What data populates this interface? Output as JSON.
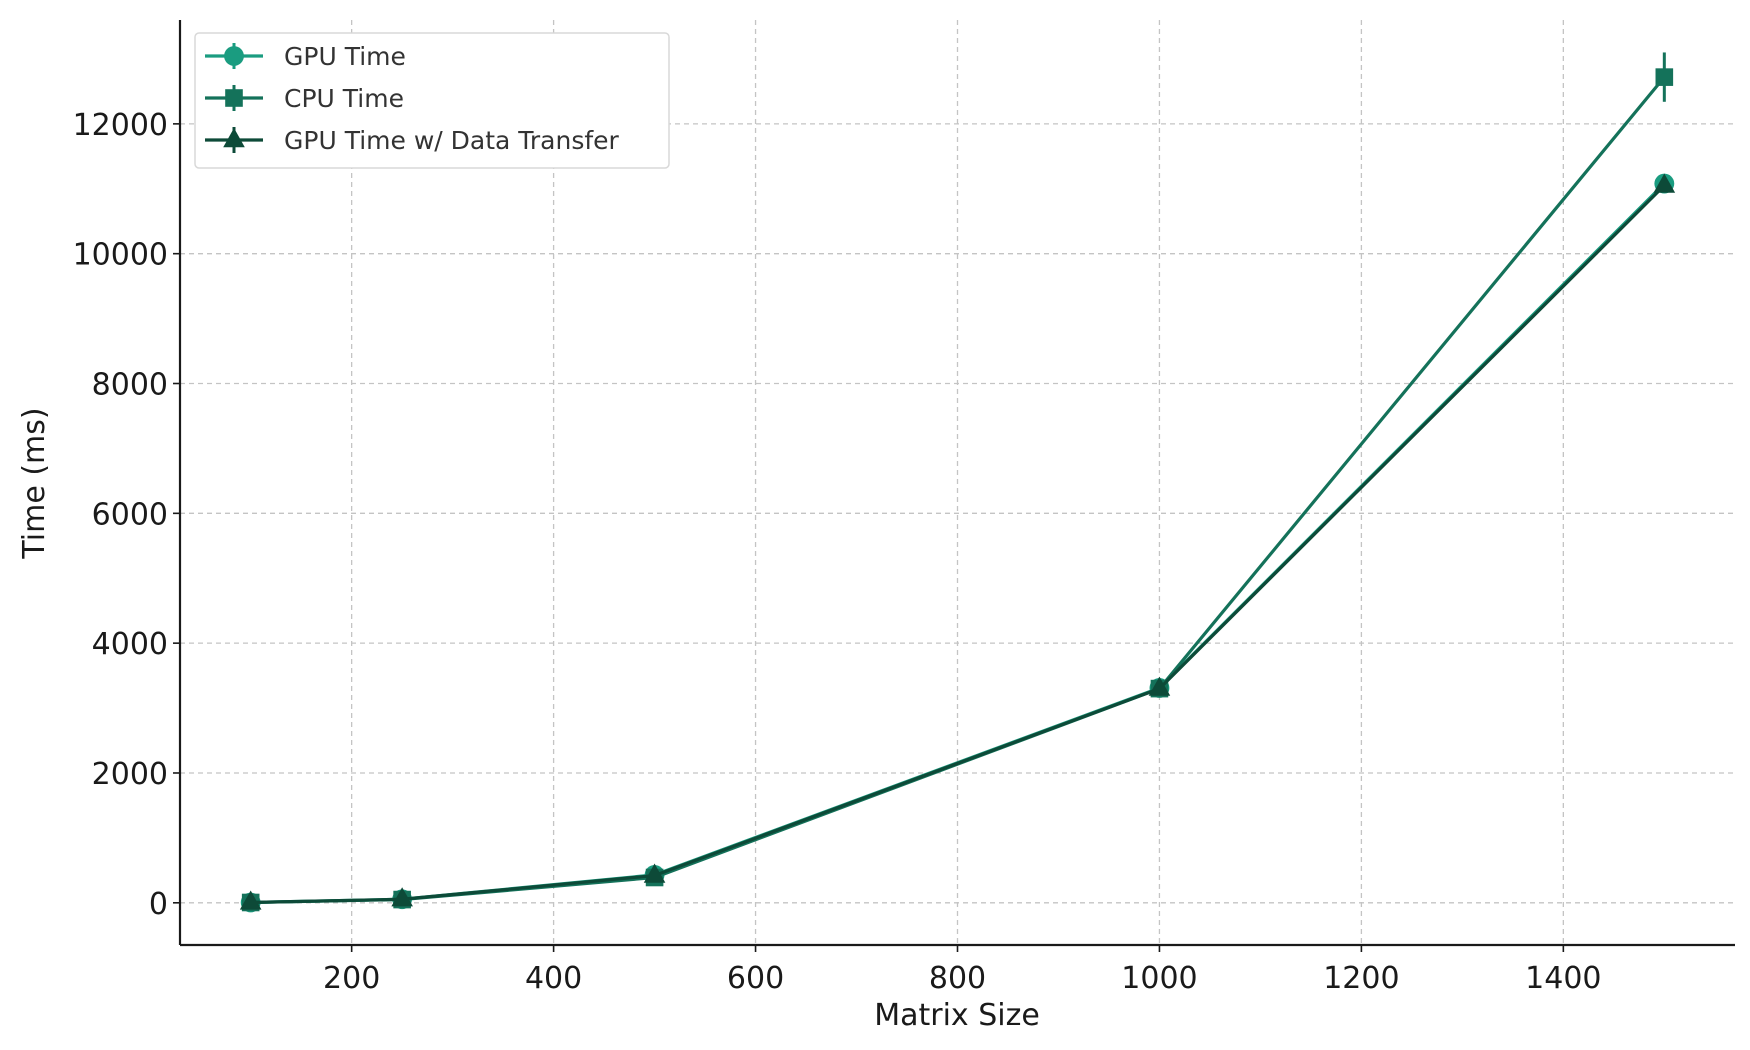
{
  "chart_data": {
    "type": "line",
    "title": "",
    "xlabel": "Matrix Size",
    "ylabel": "Time (ms)",
    "xlim": [
      30,
      1570
    ],
    "ylim": [
      -650,
      13600
    ],
    "x_ticks": [
      200,
      400,
      600,
      800,
      1000,
      1200,
      1400
    ],
    "y_ticks": [
      0,
      2000,
      4000,
      6000,
      8000,
      10000,
      12000
    ],
    "grid": true,
    "legend_position": "top-left",
    "x": [
      100,
      250,
      500,
      1000,
      1500
    ],
    "series": [
      {
        "name": "GPU Time",
        "marker": "circle",
        "color": "#1a9c80",
        "values": [
          5,
          55,
          430,
          3310,
          11080
        ],
        "errors": [
          0,
          0,
          0,
          0,
          0
        ]
      },
      {
        "name": "CPU Time",
        "marker": "square",
        "color": "#14725a",
        "values": [
          5,
          50,
          390,
          3300,
          12720
        ],
        "errors": [
          0,
          0,
          0,
          0,
          380
        ]
      },
      {
        "name": "GPU Time w/ Data Transfer",
        "marker": "triangle",
        "color": "#0d4a38",
        "values": [
          5,
          55,
          420,
          3300,
          11050
        ],
        "errors": [
          0,
          0,
          0,
          0,
          0
        ]
      }
    ]
  }
}
